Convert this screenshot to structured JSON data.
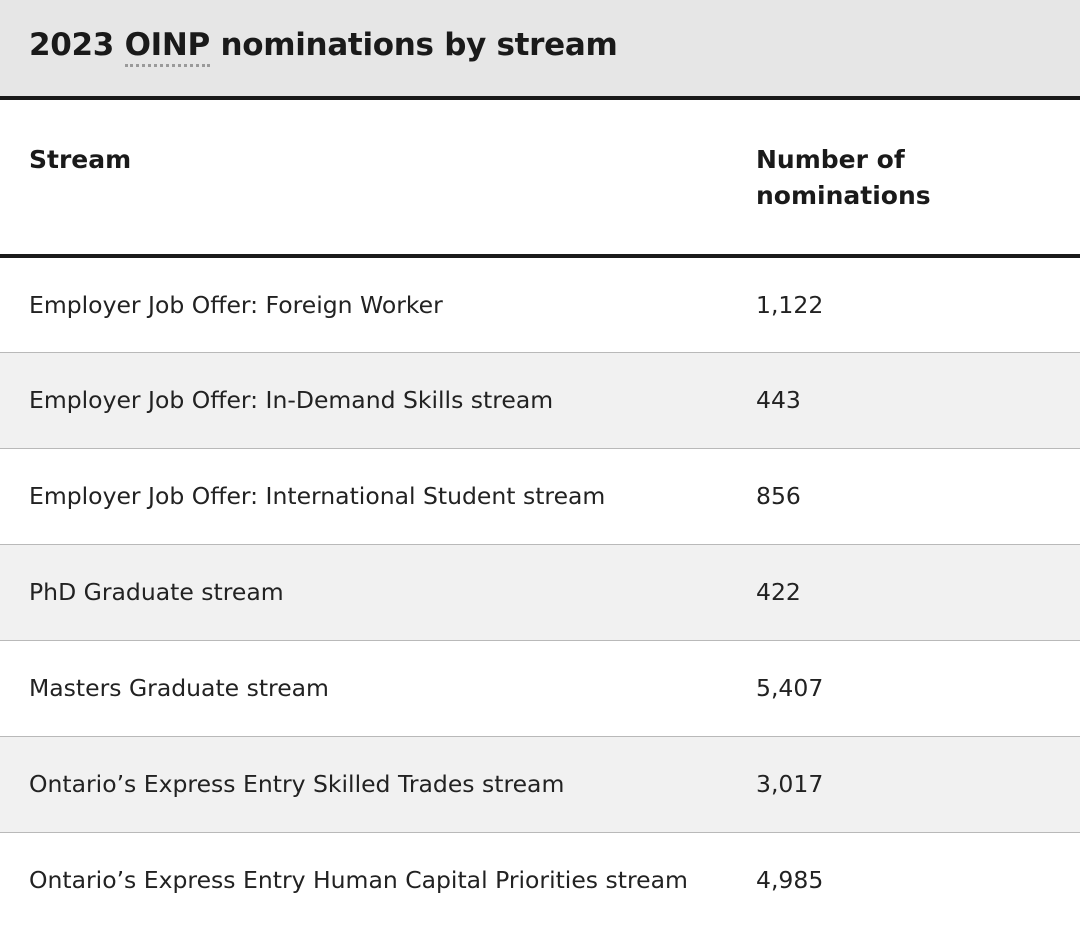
{
  "caption": {
    "year": "2023",
    "abbr": "OINP",
    "rest": "nominations by stream"
  },
  "table": {
    "headers": {
      "stream": "Stream",
      "number": "Number of nominations"
    },
    "rows": [
      {
        "stream": "Employer Job Offer: Foreign Worker",
        "count": "1,122"
      },
      {
        "stream": "Employer Job Offer: In-Demand Skills stream",
        "count": "443"
      },
      {
        "stream": "Employer Job Offer: International Student stream",
        "count": "856"
      },
      {
        "stream": "PhD Graduate stream",
        "count": "422"
      },
      {
        "stream": "Masters Graduate stream",
        "count": "5,407"
      },
      {
        "stream": "Ontario’s Express Entry Skilled Trades stream",
        "count": "3,017"
      },
      {
        "stream": "Ontario’s Express Entry Human Capital Priorities stream",
        "count": "4,985"
      }
    ]
  }
}
